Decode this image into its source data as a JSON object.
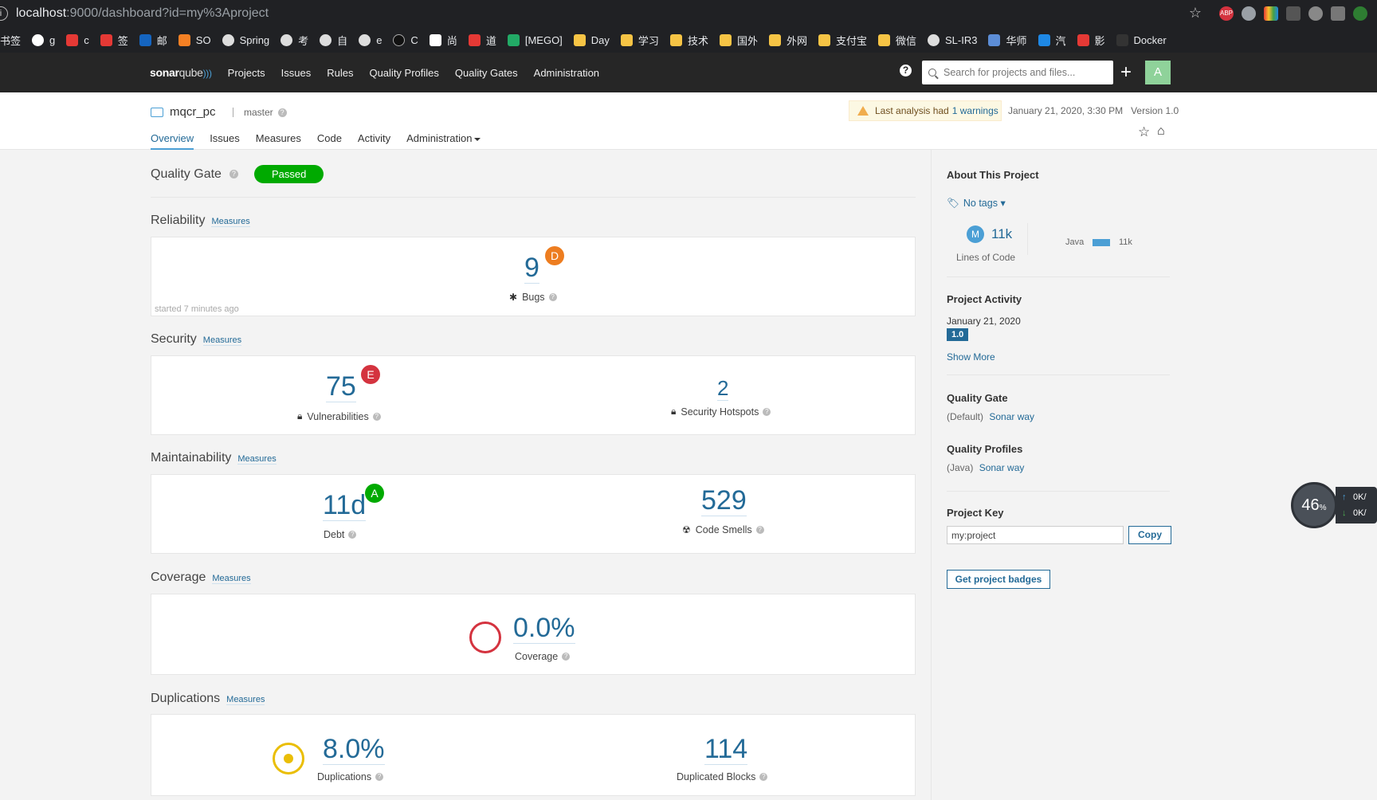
{
  "browser": {
    "url_host": "localhost",
    "url_rest": ":9000/dashboard?id=my%3Aproject",
    "bookmarks": [
      "书签",
      "g",
      "c",
      "签",
      "邮",
      "SO",
      "Spring",
      "考",
      "自",
      "e",
      "C",
      "尚",
      "道",
      "[MEGO]",
      "Day",
      "学习",
      "技术",
      "国外",
      "外网",
      "支付宝",
      "微信",
      "SL-IR3",
      "华师",
      "汽",
      "影",
      "Docker"
    ],
    "ext_abp": "ABP"
  },
  "nav": {
    "logo_main": "sonar",
    "logo_sub": "qube",
    "items": [
      "Projects",
      "Issues",
      "Rules",
      "Quality Profiles",
      "Quality Gates",
      "Administration"
    ],
    "help": "?",
    "search_placeholder": "Search for projects and files...",
    "plus": "+",
    "avatar": "A"
  },
  "project": {
    "name": "mqcr_pc",
    "branch": "master",
    "warning_text": "Last analysis had",
    "warning_link": "1 warnings",
    "date": "January 21, 2020, 3:30 PM",
    "version": "Version 1.0",
    "tabs": [
      "Overview",
      "Issues",
      "Measures",
      "Code",
      "Activity",
      "Administration"
    ]
  },
  "quality_gate": {
    "label": "Quality Gate",
    "status": "Passed"
  },
  "measures_link": "Measures",
  "reliability": {
    "title": "Reliability",
    "bugs": "9",
    "bugs_grade": "D",
    "bugs_label": "Bugs",
    "started": "started 7 minutes ago"
  },
  "security": {
    "title": "Security",
    "vulns": "75",
    "vulns_grade": "E",
    "vulns_label": "Vulnerabilities",
    "hotspots": "2",
    "hotspots_label": "Security Hotspots"
  },
  "maintainability": {
    "title": "Maintainability",
    "debt": "11d",
    "debt_grade": "A",
    "debt_label": "Debt",
    "smells": "529",
    "smells_label": "Code Smells"
  },
  "coverage": {
    "title": "Coverage",
    "value": "0.0%",
    "label": "Coverage"
  },
  "duplications": {
    "title": "Duplications",
    "value": "8.0%",
    "label": "Duplications",
    "blocks": "114",
    "blocks_label": "Duplicated Blocks"
  },
  "sidebar": {
    "about": "About This Project",
    "no_tags": "No tags",
    "loc_badge": "M",
    "loc": "11k",
    "loc_label": "Lines of Code",
    "lang": "Java",
    "lang_loc": "11k",
    "activity_title": "Project Activity",
    "activity_date": "January 21, 2020",
    "activity_version": "1.0",
    "show_more": "Show More",
    "qg_title": "Quality Gate",
    "qg_default": "(Default)",
    "qg_link": "Sonar way",
    "qp_title": "Quality Profiles",
    "qp_lang": "(Java)",
    "qp_link": "Sonar way",
    "key_title": "Project Key",
    "key_value": "my:project",
    "copy": "Copy",
    "badges": "Get project badges"
  },
  "widget": {
    "percent": "46",
    "pct_sign": "%",
    "up": "0K/",
    "down": "0K/"
  },
  "colors": {
    "grade_D": "#ed7d20",
    "grade_E": "#d4333f",
    "grade_A": "#00aa00",
    "link": "#236a97",
    "passed": "#00aa00"
  }
}
